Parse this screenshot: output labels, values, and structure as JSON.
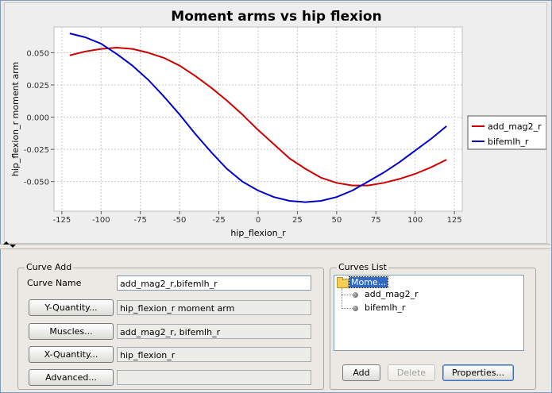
{
  "chart": {
    "title": "Moment arms vs hip flexion",
    "xlabel": "hip_flexion_r",
    "ylabel": "hip_flexion_r moment arm",
    "x_ticks": [
      "-125",
      "-100",
      "-75",
      "-50",
      "-25",
      "0",
      "25",
      "50",
      "75",
      "100",
      "125"
    ],
    "y_ticks": [
      "0.050",
      "0.025",
      "0.000",
      "-0.025",
      "-0.050"
    ],
    "legend": [
      "add_mag2_r",
      "bifemlh_r"
    ]
  },
  "chart_data": {
    "type": "line",
    "title": "Moment arms vs hip flexion",
    "xlabel": "hip_flexion_r",
    "ylabel": "hip_flexion_r moment arm",
    "xlim": [
      -130,
      130
    ],
    "ylim": [
      -0.073,
      0.07
    ],
    "grid": true,
    "legend_position": "right",
    "series": [
      {
        "name": "add_mag2_r",
        "color": "#cc0000",
        "x": [
          -120,
          -110,
          -100,
          -90,
          -80,
          -70,
          -60,
          -50,
          -40,
          -30,
          -20,
          -10,
          0,
          10,
          20,
          30,
          40,
          50,
          60,
          70,
          80,
          90,
          100,
          110,
          120
        ],
        "y": [
          0.048,
          0.051,
          0.053,
          0.054,
          0.053,
          0.05,
          0.046,
          0.04,
          0.032,
          0.023,
          0.013,
          0.002,
          -0.01,
          -0.021,
          -0.032,
          -0.04,
          -0.047,
          -0.051,
          -0.053,
          -0.053,
          -0.051,
          -0.048,
          -0.044,
          -0.039,
          -0.033
        ]
      },
      {
        "name": "bifemlh_r",
        "color": "#0000cc",
        "x": [
          -120,
          -110,
          -100,
          -90,
          -80,
          -70,
          -60,
          -50,
          -40,
          -30,
          -20,
          -10,
          0,
          10,
          20,
          30,
          40,
          50,
          60,
          70,
          80,
          90,
          100,
          110,
          120
        ],
        "y": [
          0.065,
          0.062,
          0.057,
          0.049,
          0.04,
          0.029,
          0.016,
          0.002,
          -0.013,
          -0.027,
          -0.04,
          -0.05,
          -0.057,
          -0.062,
          -0.065,
          -0.066,
          -0.065,
          -0.062,
          -0.057,
          -0.05,
          -0.043,
          -0.035,
          -0.026,
          -0.017,
          -0.007
        ]
      }
    ]
  },
  "curve_add": {
    "group_title": "Curve Add",
    "curve_name_label": "Curve Name",
    "curve_name_value": "add_mag2_r,bifemlh_r",
    "y_quantity_button": "Y-Quantity...",
    "y_quantity_value": "hip_flexion_r moment arm",
    "muscles_button": "Muscles...",
    "muscles_value": "add_mag2_r, bifemlh_r",
    "x_quantity_button": "X-Quantity...",
    "x_quantity_value": "hip_flexion_r",
    "advanced_button": "Advanced...",
    "advanced_value": ""
  },
  "curves_list": {
    "group_title": "Curves List",
    "root_label": "Mome...",
    "items": [
      "add_mag2_r",
      "bifemlh_r"
    ],
    "add_button": "Add",
    "delete_button": "Delete",
    "properties_button": "Properties..."
  }
}
